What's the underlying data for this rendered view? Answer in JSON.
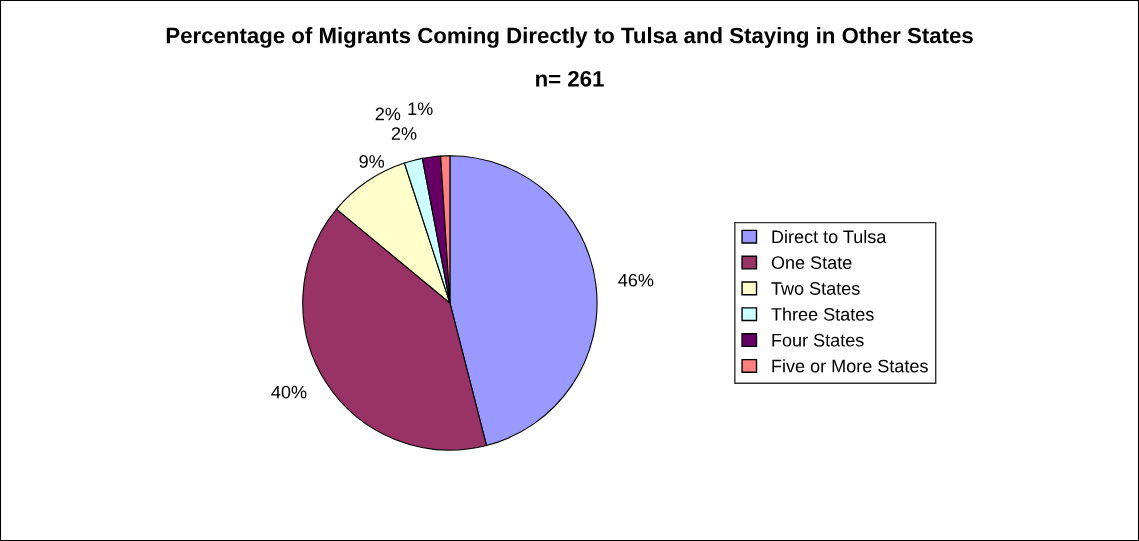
{
  "chart_data": {
    "type": "pie",
    "title": "Percentage of Migrants Coming Directly to Tulsa and Staying in Other States",
    "subtitle": "n= 261",
    "categories": [
      "Direct to Tulsa",
      "One State",
      "Two States",
      "Three States",
      "Four States",
      "Five or More States"
    ],
    "values": [
      46,
      40,
      9,
      2,
      2,
      1
    ],
    "value_labels": [
      "46%",
      "40%",
      "9%",
      "2%",
      "2%",
      "1%"
    ],
    "colors": [
      "#9999ff",
      "#993366",
      "#ffffcc",
      "#ccffff",
      "#660066",
      "#ff8080"
    ],
    "legend": "right"
  }
}
